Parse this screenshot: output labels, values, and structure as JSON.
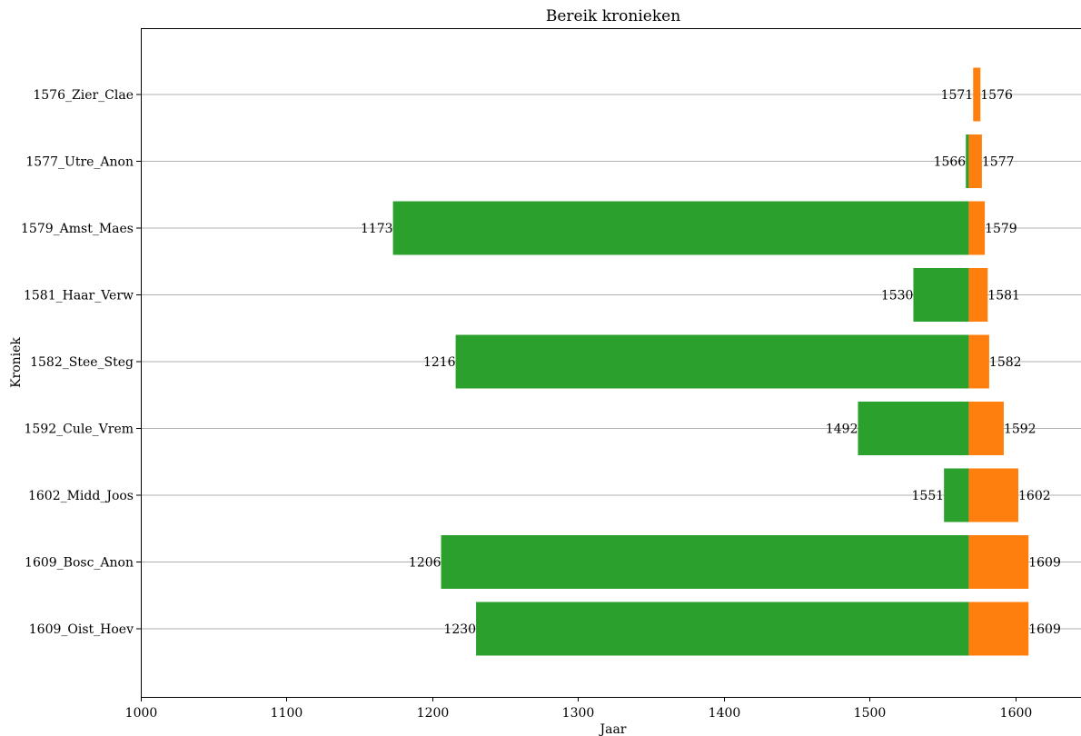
{
  "chart_data": {
    "type": "bar",
    "orientation": "horizontal-range",
    "title": "Bereik kronieken",
    "xlabel": "Jaar",
    "ylabel": "Kroniek",
    "xlim": [
      1000,
      1645
    ],
    "x_ticks": [
      1000,
      1100,
      1200,
      1300,
      1400,
      1500,
      1600
    ],
    "grid": "horizontal",
    "split_year": 1568,
    "colors": {
      "before": "#2ca02c",
      "after": "#ff7f0e"
    },
    "categories": [
      "1576_Zier_Clae",
      "1577_Utre_Anon",
      "1579_Amst_Maes",
      "1581_Haar_Verw",
      "1582_Stee_Steg",
      "1592_Cule_Vrem",
      "1602_Midd_Joos",
      "1609_Bosc_Anon",
      "1609_Oist_Hoev"
    ],
    "start": [
      1571,
      1566,
      1173,
      1530,
      1216,
      1492,
      1551,
      1206,
      1230
    ],
    "end": [
      1576,
      1577,
      1579,
      1581,
      1582,
      1592,
      1602,
      1609,
      1609
    ]
  }
}
